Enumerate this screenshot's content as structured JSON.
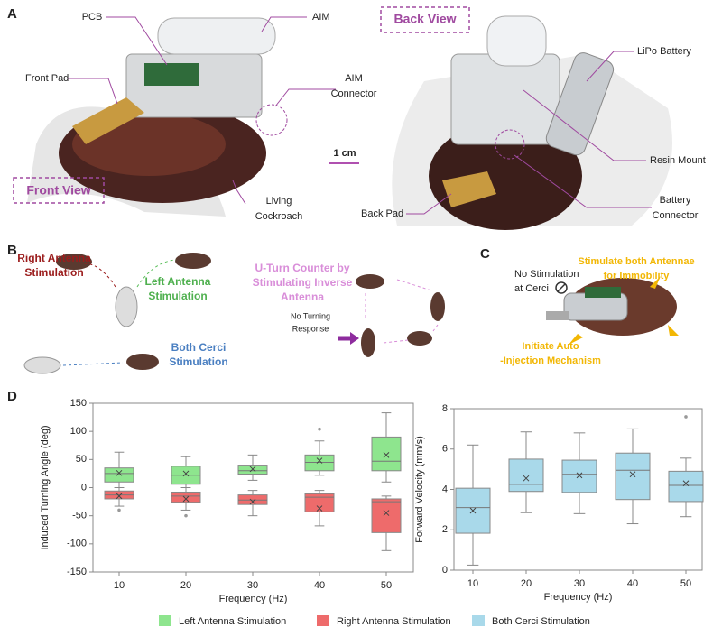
{
  "panel_a": {
    "letter": "A",
    "front_view_title": "Front View",
    "back_view_title": "Back View",
    "callouts": [
      [
        "PCB"
      ],
      [
        "AIM"
      ],
      [
        "Front Pad"
      ],
      [
        "AIM",
        "Connector"
      ],
      [
        "1 cm"
      ],
      [
        "Living",
        "Cockroach"
      ],
      [
        "LiPo Battery"
      ],
      [
        "Resin Mount"
      ],
      [
        "Back Pad"
      ],
      [
        "Battery",
        "Connector"
      ]
    ]
  },
  "panel_b": {
    "letter": "B",
    "labels": [
      [
        "Right Antenna",
        "Stimulation"
      ],
      [
        "Left Antenna",
        "Stimulation"
      ],
      [
        "Both Cerci",
        "Stimulation"
      ],
      [
        "U-Turn Counter by",
        "Stimulating Inverse",
        "Antenna"
      ],
      [
        "No Turning",
        "Response"
      ]
    ]
  },
  "panel_c": {
    "letter": "C",
    "labels": [
      [
        "No Stimulation",
        "at Cerci"
      ],
      [
        "Stimulate both Antennae",
        "for Immobility"
      ],
      [
        "Initiate Auto",
        "-Injection Mechanism"
      ]
    ]
  },
  "panel_d": {
    "letter": "D"
  },
  "chart_data": [
    {
      "type": "box",
      "xlabel": "Frequency (Hz)",
      "ylabel": "Induced Turning Angle (deg)",
      "categories": [
        "10",
        "20",
        "30",
        "40",
        "50"
      ],
      "ylim": [
        -150,
        150
      ],
      "yticks": [
        -150,
        -100,
        -50,
        0,
        50,
        100,
        150
      ],
      "grid": false,
      "series": [
        {
          "name": "Left Antenna Stimulation",
          "color": "#8ee58e",
          "values": [
            {
              "min": 0,
              "q1": 10,
              "median": 25,
              "q3": 35,
              "max": 63,
              "mean": 26,
              "outliers": []
            },
            {
              "min": 0,
              "q1": 6,
              "median": 22,
              "q3": 38,
              "max": 55,
              "mean": 25,
              "outliers": []
            },
            {
              "min": 13,
              "q1": 24,
              "median": 30,
              "q3": 40,
              "max": 58,
              "mean": 33,
              "outliers": []
            },
            {
              "min": 22,
              "q1": 30,
              "median": 45,
              "q3": 58,
              "max": 83,
              "mean": 48,
              "outliers": [
                104
              ]
            },
            {
              "min": 10,
              "q1": 30,
              "median": 47,
              "q3": 90,
              "max": 133,
              "mean": 58,
              "outliers": []
            }
          ]
        },
        {
          "name": "Right Antenna Stimulation",
          "color": "#ee6b6b",
          "values": [
            {
              "min": -33,
              "q1": -20,
              "median": -13,
              "q3": -6,
              "max": 0,
              "mean": -15,
              "outliers": [
                -40
              ]
            },
            {
              "min": -40,
              "q1": -26,
              "median": -15,
              "q3": -8,
              "max": 0,
              "mean": -20,
              "outliers": [
                -50
              ]
            },
            {
              "min": -50,
              "q1": -30,
              "median": -22,
              "q3": -13,
              "max": -5,
              "mean": -25,
              "outliers": []
            },
            {
              "min": -68,
              "q1": -43,
              "median": -17,
              "q3": -11,
              "max": -5,
              "mean": -37,
              "outliers": []
            },
            {
              "min": -112,
              "q1": -80,
              "median": -25,
              "q3": -20,
              "max": -15,
              "mean": -45,
              "outliers": []
            }
          ]
        }
      ]
    },
    {
      "type": "box",
      "xlabel": "Frequency (Hz)",
      "ylabel": "Forward Velocity (mm/s)",
      "categories": [
        "10",
        "20",
        "30",
        "40",
        "50"
      ],
      "ylim": [
        0,
        8
      ],
      "yticks": [
        0,
        2,
        4,
        6,
        8
      ],
      "grid": false,
      "series": [
        {
          "name": "Both Cerci Stimulation",
          "color": "#a9d9ea",
          "values": [
            {
              "min": 0.25,
              "q1": 1.83,
              "median": 3.1,
              "q3": 4.06,
              "max": 6.2,
              "mean": 2.95,
              "outliers": []
            },
            {
              "min": 2.85,
              "q1": 3.9,
              "median": 4.25,
              "q3": 5.5,
              "max": 6.85,
              "mean": 4.55,
              "outliers": []
            },
            {
              "min": 2.8,
              "q1": 3.85,
              "median": 4.75,
              "q3": 5.45,
              "max": 6.8,
              "mean": 4.7,
              "outliers": []
            },
            {
              "min": 2.3,
              "q1": 3.5,
              "median": 4.95,
              "q3": 5.8,
              "max": 7.0,
              "mean": 4.75,
              "outliers": []
            },
            {
              "min": 2.65,
              "q1": 3.4,
              "median": 4.2,
              "q3": 4.9,
              "max": 5.55,
              "mean": 4.3,
              "outliers": [
                7.6
              ]
            }
          ]
        }
      ]
    }
  ]
}
